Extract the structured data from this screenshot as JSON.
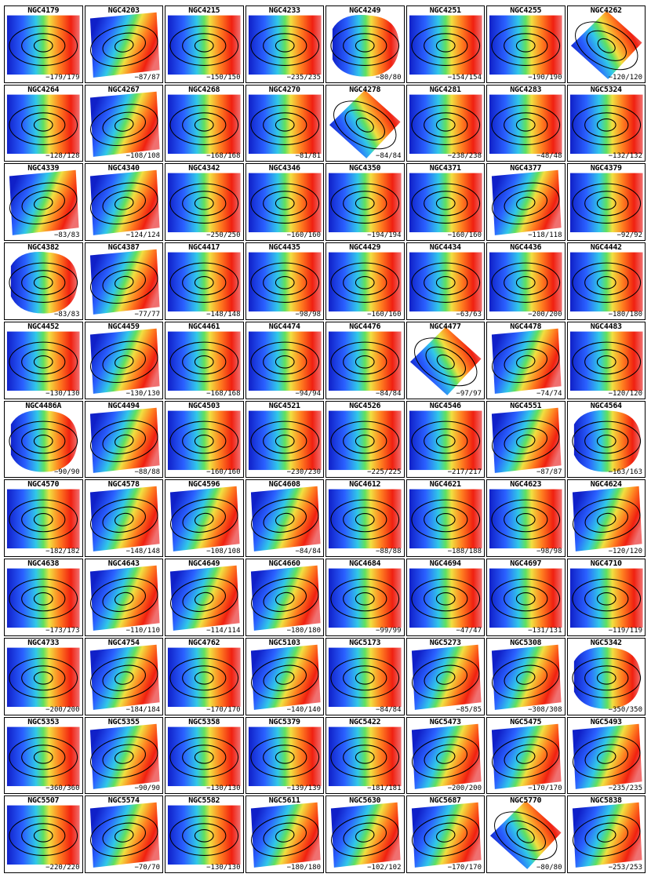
{
  "panels": [
    {
      "name": "NGC4179",
      "range": "−179/179",
      "shape": "rect",
      "contours": 3
    },
    {
      "name": "NGC4203",
      "range": "−87/87",
      "shape": "tilt",
      "contours": 3
    },
    {
      "name": "NGC4215",
      "range": "−150/150",
      "shape": "rect",
      "contours": 3
    },
    {
      "name": "NGC4233",
      "range": "−235/235",
      "shape": "rect",
      "contours": 3
    },
    {
      "name": "NGC4249",
      "range": "−80/80",
      "shape": "blob",
      "contours": 3
    },
    {
      "name": "NGC4251",
      "range": "−154/154",
      "shape": "rect",
      "contours": 3
    },
    {
      "name": "NGC4255",
      "range": "−190/190",
      "shape": "rect",
      "contours": 3
    },
    {
      "name": "NGC4262",
      "range": "−120/120",
      "shape": "diamond",
      "contours": 3
    },
    {
      "name": "NGC4264",
      "range": "−128/128",
      "shape": "rect",
      "contours": 3
    },
    {
      "name": "NGC4267",
      "range": "−108/108",
      "shape": "tilt",
      "contours": 3
    },
    {
      "name": "NGC4268",
      "range": "−168/168",
      "shape": "rect",
      "contours": 3
    },
    {
      "name": "NGC4270",
      "range": "−81/81",
      "shape": "rect",
      "contours": 3
    },
    {
      "name": "NGC4278",
      "range": "−84/84",
      "shape": "diamond",
      "contours": 3
    },
    {
      "name": "NGC4281",
      "range": "−238/238",
      "shape": "rect",
      "contours": 3
    },
    {
      "name": "NGC4283",
      "range": "−48/48",
      "shape": "rect",
      "contours": 3
    },
    {
      "name": "NGC5324",
      "range": "−132/132",
      "shape": "rect",
      "contours": 3
    },
    {
      "name": "NGC4339",
      "range": "−83/83",
      "shape": "tilt",
      "contours": 3
    },
    {
      "name": "NGC4340",
      "range": "−124/124",
      "shape": "tilt",
      "contours": 3
    },
    {
      "name": "NGC4342",
      "range": "−250/250",
      "shape": "rect",
      "contours": 3
    },
    {
      "name": "NGC4346",
      "range": "−160/160",
      "shape": "rect",
      "contours": 3
    },
    {
      "name": "NGC4350",
      "range": "−194/194",
      "shape": "rect",
      "contours": 3
    },
    {
      "name": "NGC4371",
      "range": "−160/160",
      "shape": "rect",
      "contours": 3
    },
    {
      "name": "NGC4377",
      "range": "−118/118",
      "shape": "tilt",
      "contours": 3
    },
    {
      "name": "NGC4379",
      "range": "−92/92",
      "shape": "rect",
      "contours": 3
    },
    {
      "name": "NGC4382",
      "range": "−83/83",
      "shape": "blob",
      "contours": 3
    },
    {
      "name": "NGC4387",
      "range": "−77/77",
      "shape": "tilt",
      "contours": 3
    },
    {
      "name": "NGC4417",
      "range": "−148/148",
      "shape": "rect",
      "contours": 3
    },
    {
      "name": "NGC4435",
      "range": "−98/98",
      "shape": "rect",
      "contours": 3
    },
    {
      "name": "NGC4429",
      "range": "−160/160",
      "shape": "rect",
      "contours": 3
    },
    {
      "name": "NGC4434",
      "range": "−63/63",
      "shape": "rect",
      "contours": 3
    },
    {
      "name": "NGC4436",
      "range": "−200/200",
      "shape": "rect",
      "contours": 3
    },
    {
      "name": "NGC4442",
      "range": "−180/180",
      "shape": "rect",
      "contours": 3
    },
    {
      "name": "NGC4452",
      "range": "−130/130",
      "shape": "rect",
      "contours": 3
    },
    {
      "name": "NGC4459",
      "range": "−130/130",
      "shape": "tilt",
      "contours": 3
    },
    {
      "name": "NGC4461",
      "range": "−168/168",
      "shape": "rect",
      "contours": 3
    },
    {
      "name": "NGC4474",
      "range": "−94/94",
      "shape": "rect",
      "contours": 3
    },
    {
      "name": "NGC4476",
      "range": "−84/84",
      "shape": "rect",
      "contours": 3
    },
    {
      "name": "NGC4477",
      "range": "−97/97",
      "shape": "diamond",
      "contours": 3
    },
    {
      "name": "NGC4478",
      "range": "−74/74",
      "shape": "tilt",
      "contours": 3
    },
    {
      "name": "NGC4483",
      "range": "−120/120",
      "shape": "rect",
      "contours": 3
    },
    {
      "name": "NGC4486A",
      "range": "−90/90",
      "shape": "blob",
      "contours": 3
    },
    {
      "name": "NGC4494",
      "range": "−88/88",
      "shape": "tilt",
      "contours": 3
    },
    {
      "name": "NGC4503",
      "range": "−160/160",
      "shape": "rect",
      "contours": 3
    },
    {
      "name": "NGC4521",
      "range": "−230/230",
      "shape": "rect",
      "contours": 3
    },
    {
      "name": "NGC4526",
      "range": "−225/225",
      "shape": "rect",
      "contours": 3
    },
    {
      "name": "NGC4546",
      "range": "−217/217",
      "shape": "rect",
      "contours": 3
    },
    {
      "name": "NGC4551",
      "range": "−87/87",
      "shape": "tilt",
      "contours": 3
    },
    {
      "name": "NGC4564",
      "range": "−163/163",
      "shape": "blob",
      "contours": 3
    },
    {
      "name": "NGC4570",
      "range": "−182/182",
      "shape": "rect",
      "contours": 3
    },
    {
      "name": "NGC4578",
      "range": "−148/148",
      "shape": "tilt",
      "contours": 3
    },
    {
      "name": "NGC4596",
      "range": "−108/108",
      "shape": "tilt",
      "contours": 3
    },
    {
      "name": "NGC4608",
      "range": "−84/84",
      "shape": "tilt",
      "contours": 3
    },
    {
      "name": "NGC4612",
      "range": "−88/88",
      "shape": "rect",
      "contours": 3
    },
    {
      "name": "NGC4621",
      "range": "−188/188",
      "shape": "rect",
      "contours": 3
    },
    {
      "name": "NGC4623",
      "range": "−98/98",
      "shape": "rect",
      "contours": 3
    },
    {
      "name": "NGC4624",
      "range": "−120/120",
      "shape": "tilt",
      "contours": 3
    },
    {
      "name": "NGC4638",
      "range": "−173/173",
      "shape": "rect",
      "contours": 3
    },
    {
      "name": "NGC4643",
      "range": "−110/110",
      "shape": "tilt",
      "contours": 3
    },
    {
      "name": "NGC4649",
      "range": "−114/114",
      "shape": "tilt",
      "contours": 3
    },
    {
      "name": "NGC4660",
      "range": "−180/180",
      "shape": "tilt",
      "contours": 3
    },
    {
      "name": "NGC4684",
      "range": "−99/99",
      "shape": "rect",
      "contours": 3
    },
    {
      "name": "NGC4694",
      "range": "−47/47",
      "shape": "rect",
      "contours": 3
    },
    {
      "name": "NGC4697",
      "range": "−131/131",
      "shape": "rect",
      "contours": 3
    },
    {
      "name": "NGC4710",
      "range": "−119/119",
      "shape": "rect",
      "contours": 3
    },
    {
      "name": "NGC4733",
      "range": "−200/200",
      "shape": "rect",
      "contours": 3
    },
    {
      "name": "NGC4754",
      "range": "−184/184",
      "shape": "tilt",
      "contours": 3
    },
    {
      "name": "NGC4762",
      "range": "−170/170",
      "shape": "rect",
      "contours": 3
    },
    {
      "name": "NGC5103",
      "range": "−140/140",
      "shape": "tilt",
      "contours": 3
    },
    {
      "name": "NGC5173",
      "range": "−84/84",
      "shape": "rect",
      "contours": 3
    },
    {
      "name": "NGC5273",
      "range": "−85/85",
      "shape": "tilt",
      "contours": 3
    },
    {
      "name": "NGC5308",
      "range": "−308/308",
      "shape": "tilt",
      "contours": 3
    },
    {
      "name": "NGC5342",
      "range": "−350/350",
      "shape": "blob",
      "contours": 3
    },
    {
      "name": "NGC5353",
      "range": "−360/360",
      "shape": "rect",
      "contours": 3
    },
    {
      "name": "NGC5355",
      "range": "−90/90",
      "shape": "tilt",
      "contours": 3
    },
    {
      "name": "NGC5358",
      "range": "−130/130",
      "shape": "rect",
      "contours": 3
    },
    {
      "name": "NGC5379",
      "range": "−139/139",
      "shape": "rect",
      "contours": 3
    },
    {
      "name": "NGC5422",
      "range": "−181/181",
      "shape": "rect",
      "contours": 3
    },
    {
      "name": "NGC5473",
      "range": "−200/200",
      "shape": "tilt",
      "contours": 3
    },
    {
      "name": "NGC5475",
      "range": "−170/170",
      "shape": "tilt",
      "contours": 3
    },
    {
      "name": "NGC5493",
      "range": "−235/235",
      "shape": "tilt",
      "contours": 3
    },
    {
      "name": "NGC5507",
      "range": "−220/220",
      "shape": "rect",
      "contours": 3
    },
    {
      "name": "NGC5574",
      "range": "−70/70",
      "shape": "tilt",
      "contours": 3
    },
    {
      "name": "NGC5582",
      "range": "−130/130",
      "shape": "rect",
      "contours": 3
    },
    {
      "name": "NGC5611",
      "range": "−180/180",
      "shape": "tilt",
      "contours": 3
    },
    {
      "name": "NGC5630",
      "range": "−102/102",
      "shape": "tilt",
      "contours": 3
    },
    {
      "name": "NGC5687",
      "range": "−170/170",
      "shape": "tilt",
      "contours": 3
    },
    {
      "name": "NGC5770",
      "range": "−80/80",
      "shape": "diamond",
      "contours": 3
    },
    {
      "name": "NGC5838",
      "range": "−253/253",
      "shape": "tilt",
      "contours": 3
    }
  ]
}
